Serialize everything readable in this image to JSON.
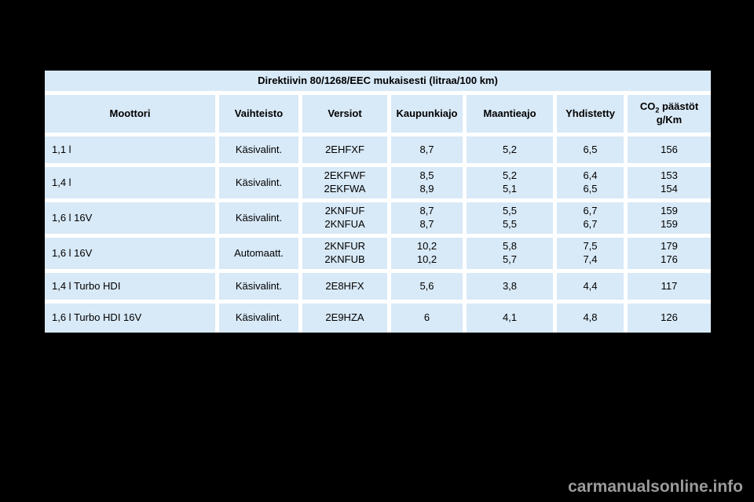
{
  "colors": {
    "page_bg": "#000000",
    "cell_bg": "#d8e9f7",
    "gap": "#ffffff",
    "text": "#000000",
    "watermark": "#9b9b9b"
  },
  "page": {
    "watermark": "carmanualsonline.info"
  },
  "table": {
    "title": "Direktiivin 80/1268/EEC mukaisesti (litraa/100 km)",
    "columns": [
      "Moottori",
      "Vaihteisto",
      "Versiot",
      "Kaupunkiajo",
      "Maantieajo",
      "Yhdistetty"
    ],
    "co2_header": {
      "prefix": "CO",
      "sub": "2",
      "suffix": " päästöt",
      "line2": "g/Km"
    },
    "rows": [
      [
        "1,1 l",
        "Käsivalint.",
        "2EHFXF",
        "8,7",
        "5,2",
        "6,5",
        "156"
      ],
      [
        "1,4 l",
        "Käsivalint.",
        "2EKFWF\n2EKFWA",
        "8,5\n8,9",
        "5,2\n5,1",
        "6,4\n6,5",
        "153\n154"
      ],
      [
        "1,6 l 16V",
        "Käsivalint.",
        "2KNFUF\n2KNFUA",
        "8,7\n8,7",
        "5,5\n5,5",
        "6,7\n6,7",
        "159\n159"
      ],
      [
        "1,6 l 16V",
        "Automaatt.",
        "2KNFUR\n2KNFUB",
        "10,2\n10,2",
        "5,8\n5,7",
        "7,5\n7,4",
        "179\n176"
      ],
      [
        "1,4 l Turbo HDI",
        "Käsivalint.",
        "2E8HFX",
        "5,6",
        "3,8",
        "4,4",
        "117"
      ],
      [
        "1,6 l Turbo HDI 16V",
        "Käsivalint.",
        "2E9HZA",
        "6",
        "4,1",
        "4,8",
        "126"
      ]
    ]
  }
}
